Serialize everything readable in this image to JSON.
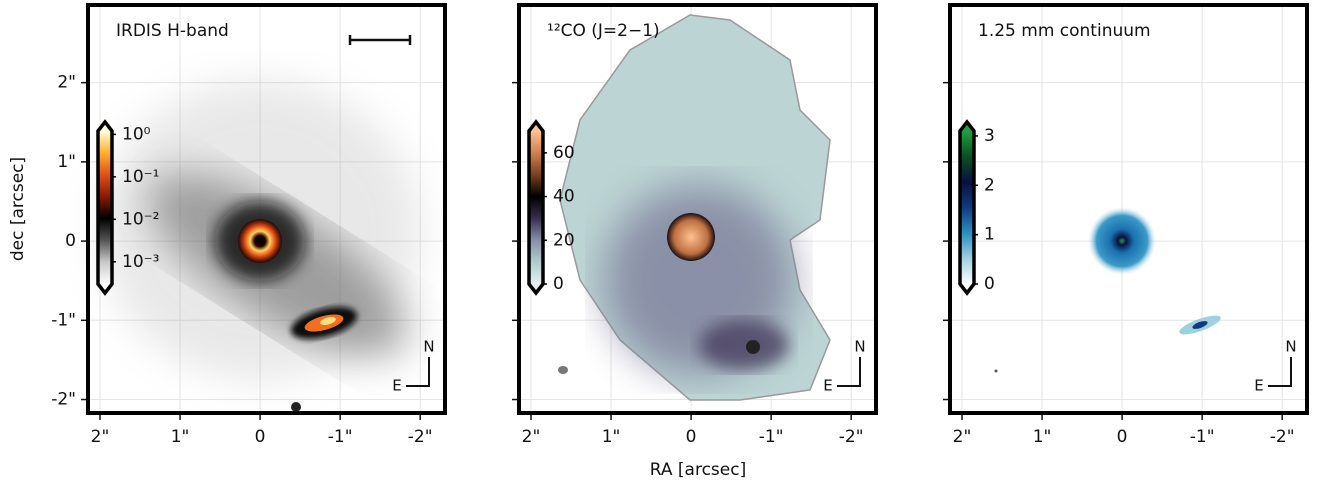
{
  "chart_data": [
    {
      "type": "image",
      "title": "IRDIS H-band",
      "ylabel": "dec [arcsec]",
      "xlim": [
        2.15,
        -2.31
      ],
      "ylim": [
        -2.17,
        2.98
      ],
      "grid": true,
      "xticks": [
        {
          "value": 2,
          "label": "2\""
        },
        {
          "value": 1,
          "label": "1\""
        },
        0,
        {
          "value": -1,
          "label": "-1\""
        },
        {
          "value": -2,
          "label": "-2\""
        }
      ],
      "yticks": [
        {
          "value": 2,
          "label": "2\""
        },
        {
          "value": 1,
          "label": "1\""
        },
        0,
        {
          "value": -1,
          "label": "-1\""
        },
        {
          "value": -2,
          "label": "-2\""
        }
      ],
      "colorbar": {
        "lim": [
          0.0003,
          1.2
        ],
        "log": true,
        "colormap": [
          "#ffffff",
          "#c8c8c8",
          "#555555",
          "#000000",
          "#8a1a00",
          "#e0501a",
          "#ffb030",
          "#ffffd8"
        ],
        "ticks": [
          {
            "value": 1,
            "label": "10⁰"
          },
          {
            "value": 0.1,
            "label": "10⁻¹"
          },
          {
            "value": 0.01,
            "label": "10⁻²"
          },
          {
            "value": 0.001,
            "label": "10⁻³"
          }
        ]
      },
      "compass": {
        "north": "N",
        "east": "E"
      }
    },
    {
      "type": "image",
      "title": "¹²CO (J=2−1)",
      "xlabel": "RA [arcsec]",
      "xlim": [
        2.15,
        -2.31
      ],
      "ylim": [
        -2.17,
        2.98
      ],
      "grid": true,
      "xticks": [
        {
          "value": 2,
          "label": "2\""
        },
        {
          "value": 1,
          "label": "1\""
        },
        0,
        {
          "value": -1,
          "label": "-1\""
        },
        {
          "value": -2,
          "label": "-2\""
        }
      ],
      "colorbar": {
        "lim": [
          0,
          70
        ],
        "log": false,
        "colormap": [
          "#e6f0f0",
          "#b0cccc",
          "#8890aa",
          "#3a2f50",
          "#000000",
          "#7a4020",
          "#d08050",
          "#ffc090"
        ],
        "ticks": [
          60,
          40,
          20,
          0
        ]
      },
      "compass": {
        "north": "N",
        "east": "E"
      }
    },
    {
      "type": "image",
      "title": "1.25 mm continuum",
      "xlim": [
        2.15,
        -2.31
      ],
      "ylim": [
        -2.17,
        2.98
      ],
      "grid": true,
      "xticks": [
        {
          "value": 2,
          "label": "2\""
        },
        {
          "value": 1,
          "label": "1\""
        },
        0,
        {
          "value": -1,
          "label": "-1\""
        },
        {
          "value": -2,
          "label": "-2\""
        }
      ],
      "colorbar": {
        "lim": [
          0,
          3.1
        ],
        "log": false,
        "colormap": [
          "#ffffff",
          "#9fd0e0",
          "#2a90c0",
          "#103a80",
          "#0a1040",
          "#0a5020",
          "#20a040"
        ],
        "ticks": [
          3,
          2,
          1,
          0
        ]
      },
      "compass": {
        "north": "N",
        "east": "E"
      }
    }
  ]
}
